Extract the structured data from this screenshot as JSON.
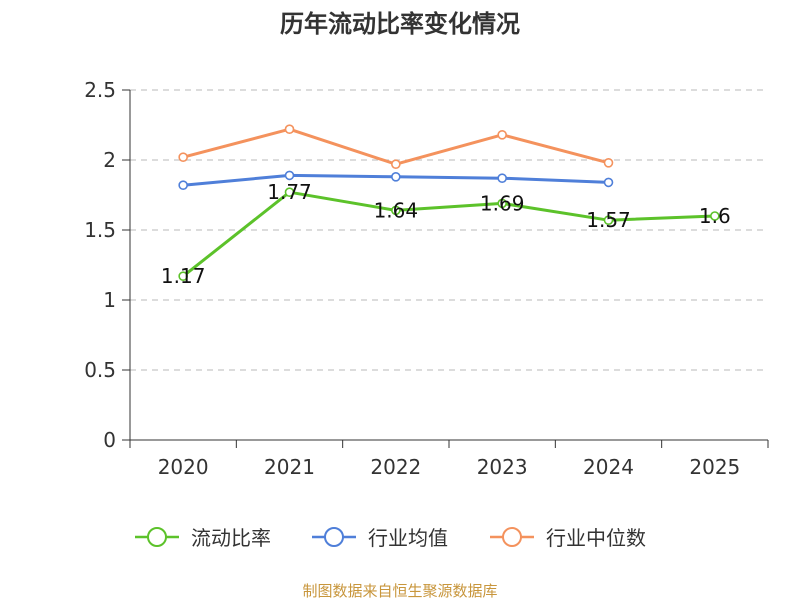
{
  "chart_data": {
    "type": "line",
    "title": "历年流动比率变化情况",
    "categories": [
      "2020",
      "2021",
      "2022",
      "2023",
      "2024",
      "2025"
    ],
    "ylim": [
      0,
      2.5
    ],
    "yticks": [
      "0",
      "0.5",
      "1",
      "1.5",
      "2",
      "2.5"
    ],
    "grid": true,
    "legend_position": "bottom",
    "series": [
      {
        "name": "流动比率",
        "color": "#5cc22a",
        "values": [
          1.17,
          1.77,
          1.64,
          1.69,
          1.57,
          1.6
        ],
        "labels": [
          "1.17",
          "1.77",
          "1.64",
          "1.69",
          "1.57",
          "1.6"
        ]
      },
      {
        "name": "行业均值",
        "color": "#4f7fd9",
        "values": [
          1.82,
          1.89,
          1.88,
          1.87,
          1.84,
          null
        ]
      },
      {
        "name": "行业中位数",
        "color": "#f4925d",
        "values": [
          2.02,
          2.22,
          1.97,
          2.18,
          1.98,
          null
        ]
      }
    ],
    "source": "制图数据来自恒生聚源数据库"
  }
}
